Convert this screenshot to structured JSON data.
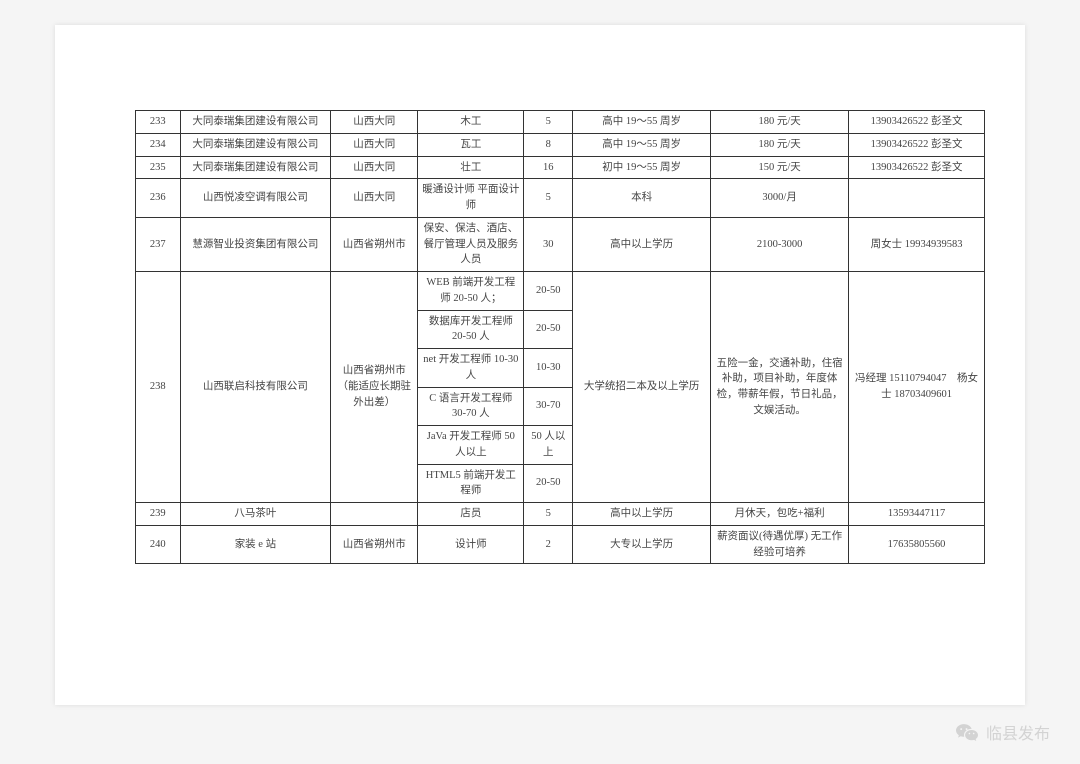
{
  "rows": [
    {
      "num": "233",
      "company": "大同泰瑞集团建设有限公司",
      "location": "山西大同",
      "position": "木工",
      "count": "5",
      "requirement": "高中 19～55 周岁",
      "salary": "180 元/天",
      "contact": "13903426522 彭圣文"
    },
    {
      "num": "234",
      "company": "大同泰瑞集团建设有限公司",
      "location": "山西大同",
      "position": "瓦工",
      "count": "8",
      "requirement": "高中 19～55 周岁",
      "salary": "180 元/天",
      "contact": "13903426522 彭圣文"
    },
    {
      "num": "235",
      "company": "大同泰瑞集团建设有限公司",
      "location": "山西大同",
      "position": "壮工",
      "count": "16",
      "requirement": "初中 19～55 周岁",
      "salary": "150 元/天",
      "contact": "13903426522 彭圣文"
    },
    {
      "num": "236",
      "company": "山西悦凌空调有限公司",
      "location": "山西大同",
      "position": "暖通设计师 平面设计师",
      "count": "5",
      "requirement": "本科",
      "salary": "3000/月",
      "contact": ""
    },
    {
      "num": "237",
      "company": "慧源智业投资集团有限公司",
      "location": "山西省朔州市",
      "position": "保安、保洁、酒店、餐厅管理人员及服务人员",
      "count": "30",
      "requirement": "高中以上学历",
      "salary": "2100-3000",
      "contact": "周女士 19934939583"
    }
  ],
  "row238": {
    "num": "238",
    "company": "山西联启科技有限公司",
    "location": "山西省朔州市（能适应长期驻外出差）",
    "requirement": "大学统招二本及以上学历",
    "salary": "五险一金，交通补助，住宿补助，项目补助，年度体检，带薪年假，节日礼品，文娱活动。",
    "contact": "冯经理 15110794047　杨女士 18703409601",
    "positions": [
      {
        "position": "WEB 前端开发工程师 20-50 人；",
        "count": "20-50"
      },
      {
        "position": "数据库开发工程师 20-50 人",
        "count": "20-50"
      },
      {
        "position": "net 开发工程师 10-30 人",
        "count": "10-30"
      },
      {
        "position": "C 语言开发工程师 30-70 人",
        "count": "30-70"
      },
      {
        "position": "JaVa 开发工程师 50 人以上",
        "count": "50 人以上"
      },
      {
        "position": "HTML5 前端开发工程师",
        "count": "20-50"
      }
    ]
  },
  "rows_after": [
    {
      "num": "239",
      "company": "八马茶叶",
      "location": "",
      "position": "店员",
      "count": "5",
      "requirement": "高中以上学历",
      "salary": "月休天，包吃+福利",
      "contact": "13593447117"
    },
    {
      "num": "240",
      "company": "家装 e 站",
      "location": "山西省朔州市",
      "position": "设计师",
      "count": "2",
      "requirement": "大专以上学历",
      "salary": "薪资面议(待遇优厚) 无工作经验可培养",
      "contact": "17635805560"
    }
  ],
  "watermark": "临县发布"
}
